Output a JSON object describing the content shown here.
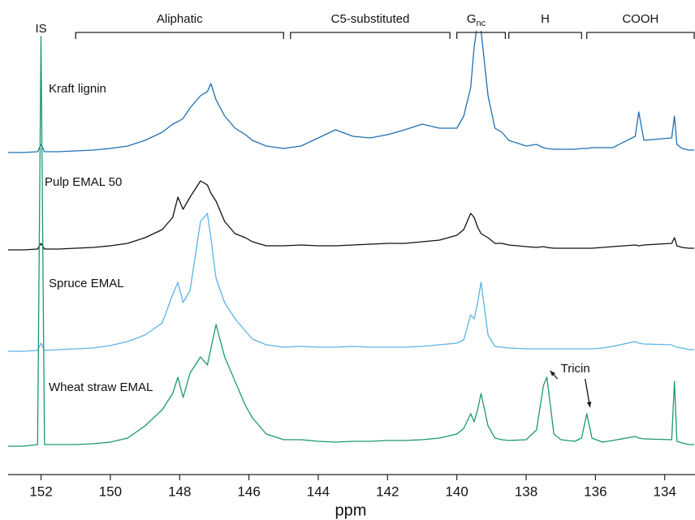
{
  "chart_data": {
    "type": "line",
    "xlabel": "ppm",
    "xlim": [
      152.95,
      133.15
    ],
    "xticks": [
      152,
      150,
      148,
      146,
      144,
      142,
      140,
      138,
      136,
      134
    ],
    "x": [
      153,
      152.5,
      152.1,
      152.0,
      151.9,
      151.5,
      151,
      150.5,
      150,
      149.5,
      149,
      148.5,
      148.2,
      148.05,
      147.9,
      147.7,
      147.4,
      147.2,
      147.1,
      146.95,
      146.7,
      146.4,
      146.1,
      145.9,
      145.5,
      145,
      144.5,
      144,
      143.5,
      143,
      142.5,
      142,
      141.5,
      141,
      140.5,
      140.0,
      139.8,
      139.6,
      139.5,
      139.4,
      139.3,
      139.1,
      138.9,
      138.7,
      138.5,
      138.0,
      137.7,
      137.5,
      137.4,
      137.2,
      137.0,
      136.6,
      136.4,
      136.25,
      136.1,
      135.8,
      135.5,
      134.85,
      134.75,
      134.6,
      133.8,
      133.72,
      133.65,
      133.5,
      133.3,
      133.15
    ],
    "series": [
      {
        "name": "Kraft lignin",
        "color": "#1f6fb2",
        "values": [
          0,
          0,
          1,
          10,
          1,
          1,
          2,
          3,
          5,
          8,
          15,
          25,
          35,
          38,
          42,
          55,
          70,
          75,
          85,
          65,
          45,
          30,
          22,
          15,
          8,
          5,
          8,
          18,
          28,
          20,
          18,
          22,
          28,
          35,
          30,
          30,
          45,
          80,
          130,
          160,
          150,
          70,
          30,
          25,
          15,
          8,
          10,
          6,
          5,
          4,
          4,
          4,
          5,
          5,
          6,
          6,
          6,
          20,
          50,
          15,
          18,
          45,
          10,
          5,
          3,
          3
        ]
      },
      {
        "name": "Pulp EMAL 50",
        "color": "#111111",
        "values": [
          0,
          0,
          1,
          8,
          1,
          1,
          2,
          3,
          5,
          8,
          15,
          25,
          40,
          65,
          50,
          65,
          85,
          80,
          70,
          60,
          35,
          20,
          15,
          10,
          5,
          5,
          6,
          5,
          5,
          6,
          7,
          8,
          8,
          10,
          12,
          18,
          25,
          45,
          40,
          28,
          20,
          15,
          8,
          8,
          6,
          4,
          3,
          4,
          3,
          2,
          2,
          2,
          2,
          2,
          2,
          3,
          4,
          6,
          5,
          6,
          8,
          15,
          5,
          3,
          2,
          2
        ]
      },
      {
        "name": "Spruce EMAL",
        "color": "#5ab4e6",
        "values": [
          0,
          0,
          1,
          10,
          1,
          2,
          3,
          4,
          7,
          12,
          20,
          35,
          70,
          85,
          60,
          75,
          160,
          170,
          140,
          90,
          60,
          40,
          25,
          15,
          8,
          5,
          6,
          5,
          5,
          6,
          5,
          5,
          5,
          6,
          8,
          10,
          14,
          45,
          40,
          60,
          85,
          20,
          6,
          5,
          4,
          3,
          3,
          3,
          3,
          3,
          3,
          3,
          3,
          3,
          3,
          4,
          6,
          12,
          10,
          9,
          8,
          6,
          5,
          4,
          2,
          2
        ]
      },
      {
        "name": "Wheat straw EMAL",
        "color": "#1a9a6c",
        "values": [
          0,
          0,
          2,
          505,
          2,
          2,
          2,
          3,
          5,
          10,
          25,
          45,
          65,
          85,
          60,
          90,
          110,
          100,
          120,
          150,
          110,
          80,
          50,
          35,
          15,
          8,
          8,
          6,
          5,
          6,
          6,
          7,
          7,
          8,
          10,
          15,
          22,
          40,
          30,
          45,
          65,
          25,
          10,
          8,
          7,
          8,
          20,
          75,
          85,
          15,
          8,
          6,
          10,
          40,
          10,
          5,
          7,
          12,
          10,
          9,
          8,
          80,
          6,
          4,
          2,
          2
        ]
      }
    ],
    "regions": [
      {
        "label": "Aliphatic",
        "from": 151,
        "to": 145
      },
      {
        "label": "C5-substituted",
        "from": 144.8,
        "to": 140.2
      },
      {
        "label": "G",
        "sub": "nc",
        "from": 140.0,
        "to": 138.6
      },
      {
        "label": "H",
        "from": 138.5,
        "to": 136.4
      },
      {
        "label": "COOH",
        "from": 136.25,
        "to": 133.15
      }
    ],
    "standard": {
      "label": "IS",
      "at": 152
    },
    "tricin": {
      "label": "Tricin",
      "targets": [
        137.4,
        136.25
      ]
    }
  }
}
